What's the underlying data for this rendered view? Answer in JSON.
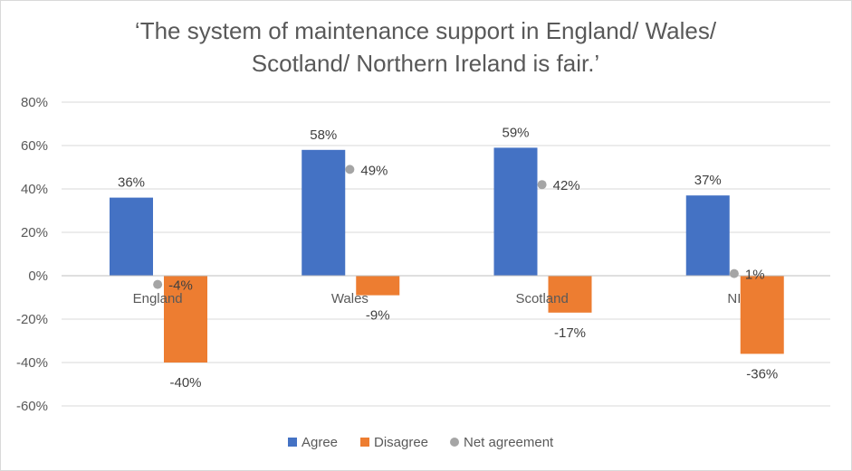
{
  "chart_data": {
    "type": "bar",
    "title": "‘The system of maintenance support in England/ Wales/ Scotland/ Northern Ireland is fair.’",
    "categories": [
      "England",
      "Wales",
      "Scotland",
      "NI"
    ],
    "series": [
      {
        "name": "Agree",
        "kind": "bar",
        "color": "#4472c4",
        "values": [
          36,
          58,
          59,
          37
        ],
        "labels": [
          "36%",
          "58%",
          "59%",
          "37%"
        ]
      },
      {
        "name": "Disagree",
        "kind": "bar",
        "color": "#ed7d31",
        "values": [
          -40,
          -9,
          -17,
          -36
        ],
        "labels": [
          "-40%",
          "-9%",
          "-17%",
          "-36%"
        ]
      },
      {
        "name": "Net agreement",
        "kind": "point",
        "color": "#a5a5a5",
        "values": [
          -4,
          49,
          42,
          1
        ],
        "labels": [
          "-4%",
          "49%",
          "42%",
          "1%"
        ]
      }
    ],
    "ylim": [
      -60,
      80
    ],
    "yticks": [
      80,
      60,
      40,
      20,
      0,
      -20,
      -40,
      -60
    ],
    "ytick_labels": [
      "80%",
      "60%",
      "40%",
      "20%",
      "0%",
      "-20%",
      "-40%",
      "-60%"
    ],
    "grid": true,
    "legend_position": "bottom"
  }
}
